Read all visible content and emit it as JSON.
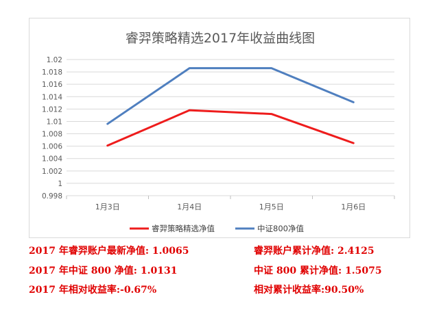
{
  "chart_data": {
    "type": "line",
    "title": "睿羿策略精选2017年收益曲线图",
    "categories": [
      "1月3日",
      "1月4日",
      "1月5日",
      "1月6日"
    ],
    "series": [
      {
        "name": "睿羿策略精选净值",
        "color": "#ee1c1c",
        "values": [
          1.0061,
          1.0118,
          1.0112,
          1.0065
        ]
      },
      {
        "name": "中证800净值",
        "color": "#4f7fbf",
        "values": [
          1.0096,
          1.0186,
          1.0186,
          1.0131
        ]
      }
    ],
    "ylim": [
      0.998,
      1.02
    ],
    "yticks": [
      "1.02",
      "1.018",
      "1.016",
      "1.014",
      "1.012",
      "1.01",
      "1.008",
      "1.006",
      "1.004",
      "1.002",
      "1",
      "0.998"
    ],
    "grid": true,
    "legend": "bottom"
  },
  "summary": {
    "r1_left": "2017 年睿羿账户最新净值: 1.0065",
    "r1_right": "睿羿账户累计净值: 2.4125",
    "r2_left": "2017 年中证 800 净值: 1.0131",
    "r2_right": "中证 800 累计净值: 1.5075",
    "r3_left": "2017 年相对收益率:-0.67%",
    "r3_right": "相对累计收益率:90.50%"
  }
}
